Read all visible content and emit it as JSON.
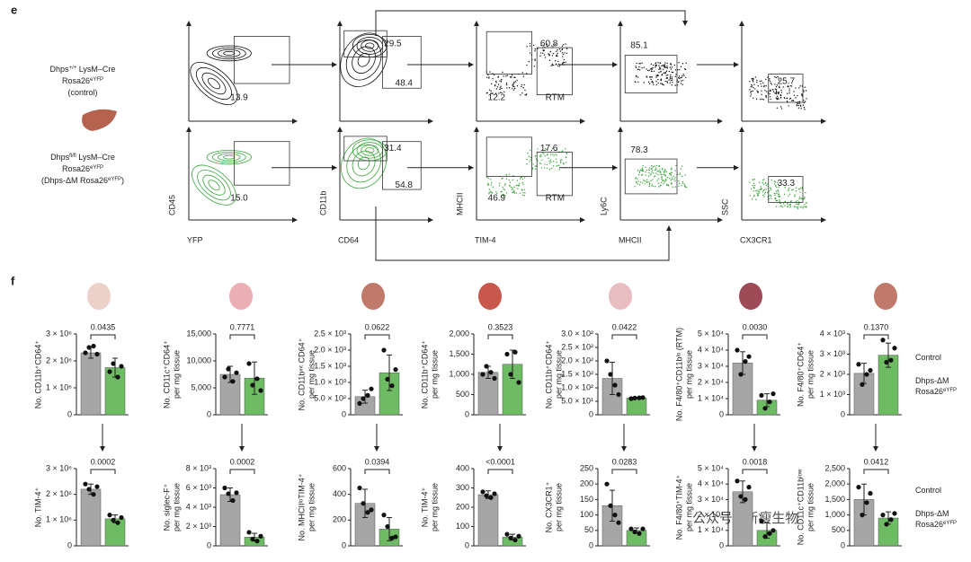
{
  "panel_labels": [
    "e",
    "f"
  ],
  "genotypes": {
    "control": [
      [
        "Dhps",
        "+/+",
        " LysM–Cre"
      ],
      [
        "Rosa26",
        "eYFP"
      ],
      [
        "(control)"
      ]
    ],
    "mutant": [
      [
        "Dhps",
        "fl/fl",
        " LysM–Cre"
      ],
      [
        "Rosa26",
        "eYFP"
      ],
      [
        "(Dhps-ΔM Rosa26",
        "eYFP",
        ")"
      ]
    ]
  },
  "flow": {
    "x_labels": [
      "YFP",
      "CD64",
      "TIM-4",
      "MHCII",
      "CX3CR1"
    ],
    "y_labels": [
      "CD45",
      "CD11b",
      "MHCII",
      "Ly6C",
      "SSC"
    ],
    "rows": [
      {
        "gates": [
          [
            "13.9"
          ],
          [
            "29.5",
            "48.4"
          ],
          [
            "60.8",
            "12.2",
            "RTM"
          ],
          [
            "85.1"
          ],
          [
            "25.7"
          ]
        ]
      },
      {
        "gates": [
          [
            "15.0"
          ],
          [
            "31.4",
            "54.8"
          ],
          [
            "17.6",
            "46.9",
            "RTM"
          ],
          [
            "78.3"
          ],
          [
            "33.3"
          ]
        ]
      }
    ]
  },
  "watermark": "公众号 · 新瘦生物",
  "chart_data": [
    {
      "type": "bar",
      "ylabel": [
        "No. CD11b⁺CD64⁺"
      ],
      "ylim": [
        0,
        3000000
      ],
      "yticks": [
        0,
        {
          "value": 1000000,
          "label": "1 × 10⁶"
        },
        {
          "value": 2000000,
          "label": "2 × 10⁶"
        },
        {
          "value": 3000000,
          "label": "3 × 10⁶"
        }
      ],
      "pvalue": "0.0435",
      "series": [
        {
          "color": "#a6a6a6",
          "values": [
            2300000
          ],
          "error": 200000,
          "points": [
            2300000,
            2500000,
            2550000,
            2250000
          ]
        },
        {
          "color": "#6dbb63",
          "values": [
            1750000
          ],
          "error": 350000,
          "points": [
            1600000,
            1900000,
            1400000,
            1800000
          ]
        }
      ]
    },
    {
      "type": "bar",
      "ylabel": [
        "No. CD11c⁺CD64⁺",
        "per mg tissue"
      ],
      "ylim": [
        0,
        15000
      ],
      "yticks": [
        0,
        {
          "value": 5000,
          "label": "5,000"
        },
        {
          "value": 10000,
          "label": "10,000"
        },
        {
          "value": 15000,
          "label": "15,000"
        }
      ],
      "pvalue": "0.7771",
      "series": [
        {
          "color": "#a6a6a6",
          "values": [
            7500
          ],
          "error": 1500,
          "points": [
            7000,
            8500,
            6200,
            7800
          ]
        },
        {
          "color": "#6dbb63",
          "values": [
            6800
          ],
          "error": 3000,
          "points": [
            9500,
            5500,
            6700,
            4500
          ]
        }
      ]
    },
    {
      "type": "bar",
      "ylabel": [
        "No. CD11bᶦⁿᵗ CD64⁺",
        "per mg tissue"
      ],
      "ylim": [
        0,
        2500
      ],
      "yticks": [
        0,
        {
          "value": 500,
          "label": "5.0 × 10²"
        },
        {
          "value": 1000,
          "label": "1.0 × 10³"
        },
        {
          "value": 1500,
          "label": "1.5 × 10³"
        },
        {
          "value": 2000,
          "label": "2.0 × 10³"
        },
        {
          "value": 2500,
          "label": "2.5 × 10³"
        }
      ],
      "pvalue": "0.0622",
      "series": [
        {
          "color": "#a6a6a6",
          "values": [
            560
          ],
          "error": 200,
          "points": [
            350,
            500,
            600,
            800
          ]
        },
        {
          "color": "#6dbb63",
          "values": [
            1300
          ],
          "error": 550,
          "points": [
            2000,
            1100,
            900,
            1400
          ]
        }
      ]
    },
    {
      "type": "bar",
      "ylabel": [
        "No. CD11b⁺CD64⁺",
        "per mg tissue"
      ],
      "ylim": [
        0,
        2000
      ],
      "yticks": [
        0,
        500,
        {
          "value": 1000,
          "label": "1,000"
        },
        {
          "value": 1500,
          "label": "1,500"
        },
        {
          "value": 2000,
          "label": "2,000"
        }
      ],
      "pvalue": "0.3523",
      "series": [
        {
          "color": "#a6a6a6",
          "values": [
            1050
          ],
          "error": 150,
          "points": [
            1000,
            1200,
            1050,
            900
          ]
        },
        {
          "color": "#6dbb63",
          "values": [
            1250
          ],
          "error": 350,
          "points": [
            1500,
            1000,
            1550,
            800
          ]
        }
      ]
    },
    {
      "type": "bar",
      "ylabel": [
        "No. CD11b⁺CD64⁺",
        "per mg tissue"
      ],
      "ylim": [
        0,
        300
      ],
      "yticks": [
        0,
        {
          "value": 50,
          "label": "5.0 × 10¹"
        },
        {
          "value": 100,
          "label": "1.0 × 10²"
        },
        {
          "value": 150,
          "label": "1.5 × 10²"
        },
        {
          "value": 200,
          "label": "2.0 × 10²"
        },
        {
          "value": 250,
          "label": "2.5 × 10²"
        },
        {
          "value": 300,
          "label": "3.0 × 10²"
        }
      ],
      "pvalue": "0.0422",
      "series": [
        {
          "color": "#a6a6a6",
          "values": [
            135
          ],
          "error": 60,
          "points": [
            200,
            150,
            110,
            75
          ]
        },
        {
          "color": "#6dbb63",
          "values": [
            62
          ],
          "error": 3,
          "points": [
            60,
            62,
            63,
            64
          ]
        }
      ]
    },
    {
      "type": "bar",
      "ylabel": [
        "No. F4/80⁺CD11bˡᵒ (RTM)",
        "per mg tissue"
      ],
      "ylim": [
        0,
        50000
      ],
      "yticks": [
        0,
        {
          "value": 10000,
          "label": "1 × 10⁴"
        },
        {
          "value": 20000,
          "label": "2 × 10⁴"
        },
        {
          "value": 30000,
          "label": "3 × 10⁴"
        },
        {
          "value": 40000,
          "label": "4 × 10⁴"
        },
        {
          "value": 50000,
          "label": "5 × 10⁴"
        }
      ],
      "pvalue": "0.0030",
      "series": [
        {
          "color": "#a6a6a6",
          "values": [
            32000
          ],
          "error": 7000,
          "points": [
            40000,
            25000,
            33000,
            36000
          ]
        },
        {
          "color": "#6dbb63",
          "values": [
            9000
          ],
          "error": 4000,
          "points": [
            12000,
            4000,
            8000,
            13000
          ]
        }
      ]
    },
    {
      "type": "bar",
      "ylabel": [
        "No. F4/80⁺CD64⁺",
        "per mg tissue"
      ],
      "ylim": [
        0,
        4000
      ],
      "yticks": [
        0,
        {
          "value": 1000,
          "label": "1 × 10³"
        },
        {
          "value": 2000,
          "label": "2 × 10³"
        },
        {
          "value": 3000,
          "label": "3 × 10³"
        },
        {
          "value": 4000,
          "label": "4 × 10³"
        }
      ],
      "pvalue": "0.1370",
      "legend": {
        "control": [
          [
            "Control"
          ]
        ],
        "mutant": [
          [
            "Dhps-ΔM"
          ],
          [
            "Rosa26",
            "eYFP"
          ]
        ]
      },
      "series": [
        {
          "color": "#a6a6a6",
          "values": [
            2050
          ],
          "error": 500,
          "points": [
            2500,
            1500,
            2000,
            2200
          ]
        },
        {
          "color": "#6dbb63",
          "values": [
            2950
          ],
          "error": 600,
          "points": [
            3700,
            2600,
            2700,
            3300
          ]
        }
      ]
    },
    {
      "type": "bar",
      "ylabel": [
        "No. TIM-4⁺"
      ],
      "ylim": [
        0,
        3000000
      ],
      "yticks": [
        0,
        {
          "value": 1000000,
          "label": "1 × 10⁶"
        },
        {
          "value": 2000000,
          "label": "2 × 10⁶"
        },
        {
          "value": 3000000,
          "label": "3 × 10⁶"
        }
      ],
      "pvalue": "0.0002",
      "series": [
        {
          "color": "#a6a6a6",
          "values": [
            2200000
          ],
          "error": 200000,
          "points": [
            2400000,
            2200000,
            2000000,
            2300000
          ]
        },
        {
          "color": "#6dbb63",
          "values": [
            1050000
          ],
          "error": 150000,
          "points": [
            1200000,
            1000000,
            900000,
            1100000
          ]
        }
      ]
    },
    {
      "type": "bar",
      "ylabel": [
        "No. siglec-F⁺",
        "per mg tissue"
      ],
      "ylim": [
        0,
        8000
      ],
      "yticks": [
        0,
        {
          "value": 2000,
          "label": "2 × 10³"
        },
        {
          "value": 4000,
          "label": "4 × 10³"
        },
        {
          "value": 6000,
          "label": "6 × 10³"
        },
        {
          "value": 8000,
          "label": "8 × 10³"
        }
      ],
      "pvalue": "0.0002",
      "series": [
        {
          "color": "#a6a6a6",
          "values": [
            5300
          ],
          "error": 700,
          "points": [
            6000,
            5400,
            4700,
            5500
          ]
        },
        {
          "color": "#6dbb63",
          "values": [
            900
          ],
          "error": 400,
          "points": [
            1400,
            700,
            500,
            1000
          ]
        }
      ]
    },
    {
      "type": "bar",
      "ylabel": [
        "No. MHCIIˡᵒTIM-4⁺",
        "per mg tissue"
      ],
      "ylim": [
        0,
        600
      ],
      "yticks": [
        0,
        200,
        400,
        600
      ],
      "pvalue": "0.0394",
      "series": [
        {
          "color": "#a6a6a6",
          "values": [
            330
          ],
          "error": 110,
          "points": [
            450,
            330,
            260,
            280
          ]
        },
        {
          "color": "#6dbb63",
          "values": [
            130
          ],
          "error": 90,
          "points": [
            240,
            150,
            60,
            70
          ]
        }
      ]
    },
    {
      "type": "bar",
      "ylabel": [
        "No. TIM-4⁺",
        "per mg tissue"
      ],
      "ylim": [
        0,
        400
      ],
      "yticks": [
        0,
        100,
        200,
        300,
        400
      ],
      "pvalue": "<0.0001",
      "series": [
        {
          "color": "#a6a6a6",
          "values": [
            265
          ],
          "error": 20,
          "points": [
            280,
            260,
            250,
            270
          ]
        },
        {
          "color": "#6dbb63",
          "values": [
            45
          ],
          "error": 15,
          "points": [
            60,
            40,
            30,
            50
          ]
        }
      ]
    },
    {
      "type": "bar",
      "ylabel": [
        "No. CX3CR1⁺",
        "per mg tissue"
      ],
      "ylim": [
        0,
        250
      ],
      "yticks": [
        0,
        50,
        100,
        150,
        200,
        250
      ],
      "pvalue": "0.0283",
      "series": [
        {
          "color": "#a6a6a6",
          "values": [
            130
          ],
          "error": 50,
          "points": [
            200,
            130,
            100,
            75
          ]
        },
        {
          "color": "#6dbb63",
          "values": [
            50
          ],
          "error": 8,
          "points": [
            55,
            45,
            40,
            55
          ]
        }
      ]
    },
    {
      "type": "bar",
      "ylabel": [
        "No. F4/80⁺TIM-4⁺",
        "per mg tissue"
      ],
      "ylim": [
        0,
        50000
      ],
      "yticks": [
        0,
        {
          "value": 10000,
          "label": "1 × 10⁴"
        },
        {
          "value": 20000,
          "label": "2 × 10⁴"
        },
        {
          "value": 30000,
          "label": "3 × 10⁴"
        },
        {
          "value": 40000,
          "label": "4 × 10⁴"
        },
        {
          "value": 50000,
          "label": "5 × 10⁴"
        }
      ],
      "pvalue": "0.0018",
      "series": [
        {
          "color": "#a6a6a6",
          "values": [
            35000
          ],
          "error": 7000,
          "points": [
            42000,
            32000,
            30000,
            38000
          ]
        },
        {
          "color": "#6dbb63",
          "values": [
            10000
          ],
          "error": 5000,
          "points": [
            16000,
            6000,
            8000,
            10000
          ]
        }
      ]
    },
    {
      "type": "bar",
      "ylabel": [
        "No. CD11c⁺CD11bˡᵒʷ",
        "per mg tissue"
      ],
      "ylim": [
        0,
        2500
      ],
      "yticks": [
        0,
        500,
        {
          "value": 1000,
          "label": "1,000"
        },
        {
          "value": 1500,
          "label": "1,500"
        },
        {
          "value": 2000,
          "label": "2,000"
        },
        {
          "value": 2500,
          "label": "2,500"
        }
      ],
      "pvalue": "0.0412",
      "legend": {
        "control": [
          [
            "Control"
          ]
        ],
        "mutant": [
          [
            "Dhps-ΔM"
          ],
          [
            "Rosa26",
            "eYFP"
          ]
        ]
      },
      "series": [
        {
          "color": "#a6a6a6",
          "values": [
            1500
          ],
          "error": 500,
          "points": [
            1900,
            1000,
            1400,
            1700
          ]
        },
        {
          "color": "#6dbb63",
          "values": [
            900
          ],
          "error": 200,
          "points": [
            1000,
            700,
            850,
            1050
          ]
        }
      ]
    }
  ]
}
